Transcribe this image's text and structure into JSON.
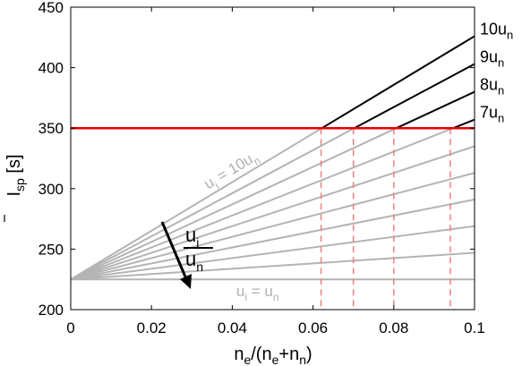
{
  "chart_data": {
    "type": "line",
    "xlabel": {
      "base": "n",
      "sub1": "e",
      "mid": "/(n",
      "sub2": "e",
      "plus": "+n",
      "sub3": "n",
      "close": ")"
    },
    "ylabel": {
      "base": "I",
      "sub": "sp",
      "unit": " [s]"
    },
    "xlim": [
      0,
      0.1
    ],
    "ylim": [
      200,
      450
    ],
    "x_ticks": [
      0,
      0.02,
      0.04,
      0.06,
      0.08,
      0.1
    ],
    "x_tick_labels": [
      "0",
      "0.02",
      "0.04",
      "0.06",
      "0.08",
      "0.1"
    ],
    "y_ticks": [
      200,
      250,
      300,
      350,
      400,
      450
    ],
    "y_tick_labels": [
      "200",
      "250",
      "300",
      "350",
      "400",
      "450"
    ],
    "grid": false,
    "colors": {
      "gray": "#b4b4b4",
      "black": "#000000",
      "threshold": "#e60000",
      "dashed": "#f08080"
    },
    "intercept": 225,
    "threshold": {
      "y": 350
    },
    "series": [
      {
        "ratio": 1,
        "x": [
          0,
          0.1
        ],
        "y": [
          225,
          225
        ]
      },
      {
        "ratio": 2,
        "x": [
          0,
          0.1
        ],
        "y": [
          225,
          247
        ]
      },
      {
        "ratio": 3,
        "x": [
          0,
          0.1
        ],
        "y": [
          225,
          269
        ]
      },
      {
        "ratio": 4,
        "x": [
          0,
          0.1
        ],
        "y": [
          225,
          291
        ]
      },
      {
        "ratio": 5,
        "x": [
          0,
          0.1
        ],
        "y": [
          225,
          313
        ]
      },
      {
        "ratio": 6,
        "x": [
          0,
          0.1
        ],
        "y": [
          225,
          335
        ]
      },
      {
        "ratio": 7,
        "x": [
          0,
          0.1
        ],
        "y": [
          225,
          357
        ]
      },
      {
        "ratio": 8,
        "x": [
          0,
          0.1
        ],
        "y": [
          225,
          380
        ]
      },
      {
        "ratio": 9,
        "x": [
          0,
          0.1
        ],
        "y": [
          225,
          403
        ]
      },
      {
        "ratio": 10,
        "x": [
          0,
          0.1
        ],
        "y": [
          225,
          426
        ]
      }
    ],
    "crossings_x": [
      0.062,
      0.07,
      0.08,
      0.094
    ],
    "series_labels": [
      {
        "ratio": 10,
        "num": "10",
        "base": "u",
        "sub": "n"
      },
      {
        "ratio": 9,
        "num": "9",
        "base": "u",
        "sub": "n"
      },
      {
        "ratio": 8,
        "num": "8",
        "base": "u",
        "sub": "n"
      },
      {
        "ratio": 7,
        "num": "7",
        "base": "u",
        "sub": "n"
      }
    ],
    "annotations": {
      "top_line": {
        "base": "u",
        "sub": "i",
        "rest": " = 10u",
        "sub2": "n"
      },
      "bottom_line": {
        "base": "u",
        "sub": "i",
        "rest": " = u",
        "sub2": "n"
      },
      "fraction": {
        "num": "u",
        "num_sub": "i",
        "den": "u",
        "den_sub": "n"
      }
    }
  }
}
